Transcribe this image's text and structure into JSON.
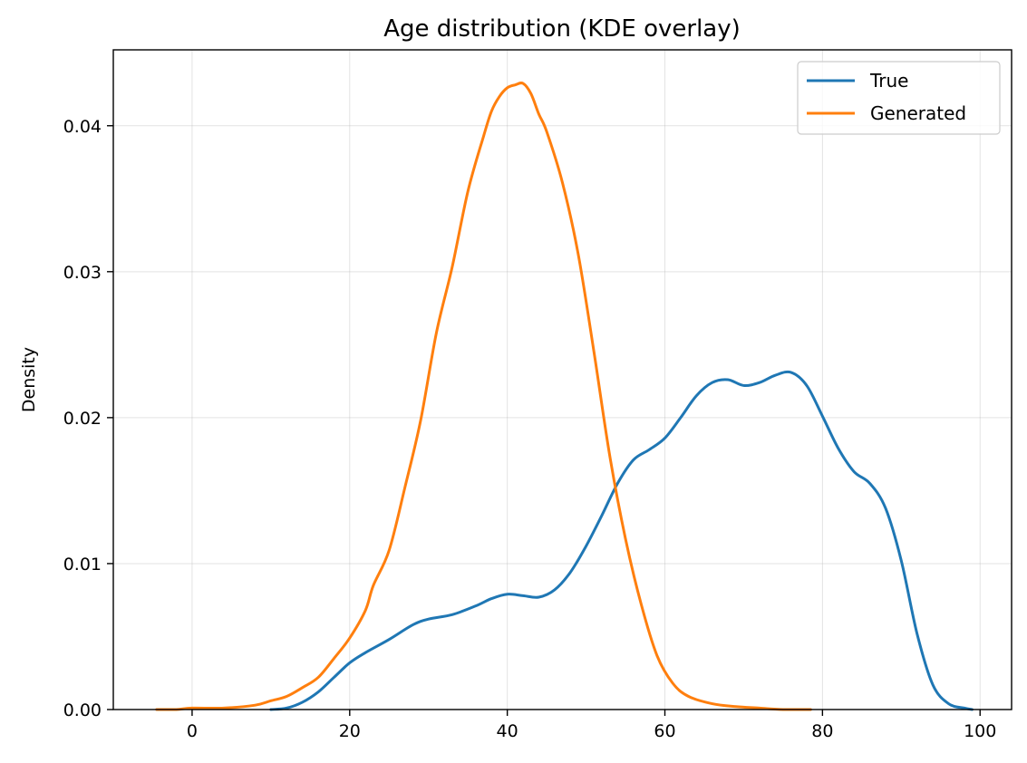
{
  "chart_data": {
    "type": "line",
    "title": "Age distribution (KDE overlay)",
    "xlabel": "",
    "ylabel": "Density",
    "xlim": [
      -10,
      104
    ],
    "ylim": [
      0,
      0.0452
    ],
    "xticks": [
      0,
      20,
      40,
      60,
      80,
      100
    ],
    "xtick_labels": [
      "0",
      "20",
      "40",
      "60",
      "80",
      "100"
    ],
    "yticks": [
      0.0,
      0.01,
      0.02,
      0.03,
      0.04
    ],
    "ytick_labels": [
      "0.00",
      "0.01",
      "0.02",
      "0.03",
      "0.04"
    ],
    "grid": true,
    "legend": {
      "position": "upper right",
      "entries": [
        "True",
        "Generated"
      ]
    },
    "series": [
      {
        "name": "True",
        "color": "#1f77b4",
        "x": [
          10,
          12,
          14,
          16,
          18,
          20,
          22,
          25,
          28,
          30,
          33,
          36,
          38,
          40,
          42,
          44,
          46,
          48,
          50,
          52,
          54,
          56,
          58,
          60,
          62,
          64,
          66,
          68,
          70,
          72,
          74,
          76,
          78,
          80,
          82,
          84,
          86,
          88,
          90,
          92,
          94,
          96,
          98,
          99
        ],
        "y": [
          0.0,
          0.0001,
          0.0005,
          0.0012,
          0.0022,
          0.0032,
          0.0039,
          0.0048,
          0.0058,
          0.0062,
          0.0065,
          0.0071,
          0.0076,
          0.0079,
          0.0078,
          0.0077,
          0.0082,
          0.0094,
          0.0112,
          0.0133,
          0.0155,
          0.0171,
          0.0178,
          0.0186,
          0.02,
          0.0215,
          0.0224,
          0.0226,
          0.0222,
          0.0224,
          0.0229,
          0.0231,
          0.0222,
          0.0201,
          0.0179,
          0.0163,
          0.0155,
          0.0138,
          0.0102,
          0.0052,
          0.0017,
          0.0004,
          0.0001,
          0.0
        ]
      },
      {
        "name": "Generated",
        "color": "#ff7f0e",
        "x": [
          -4.5,
          -2,
          0,
          4,
          8,
          10,
          12,
          14,
          16,
          18,
          20,
          22,
          23,
          25,
          27,
          29,
          31,
          33,
          35,
          37,
          38,
          39,
          40,
          41,
          42,
          43,
          44,
          45,
          47,
          49,
          51,
          53,
          55,
          57,
          59,
          61,
          63,
          66,
          69,
          72,
          75,
          78.5
        ],
        "y": [
          0.0,
          0.0,
          0.0001,
          0.0001,
          0.0003,
          0.0006,
          0.0009,
          0.0015,
          0.0022,
          0.0035,
          0.0049,
          0.0068,
          0.0085,
          0.0109,
          0.0152,
          0.0198,
          0.0258,
          0.0303,
          0.0355,
          0.0393,
          0.041,
          0.042,
          0.0426,
          0.0428,
          0.0429,
          0.0422,
          0.0408,
          0.0396,
          0.0361,
          0.0312,
          0.0245,
          0.0174,
          0.0117,
          0.0072,
          0.0037,
          0.0018,
          0.0009,
          0.0004,
          0.0002,
          0.0001,
          0.0,
          0.0
        ]
      }
    ]
  }
}
